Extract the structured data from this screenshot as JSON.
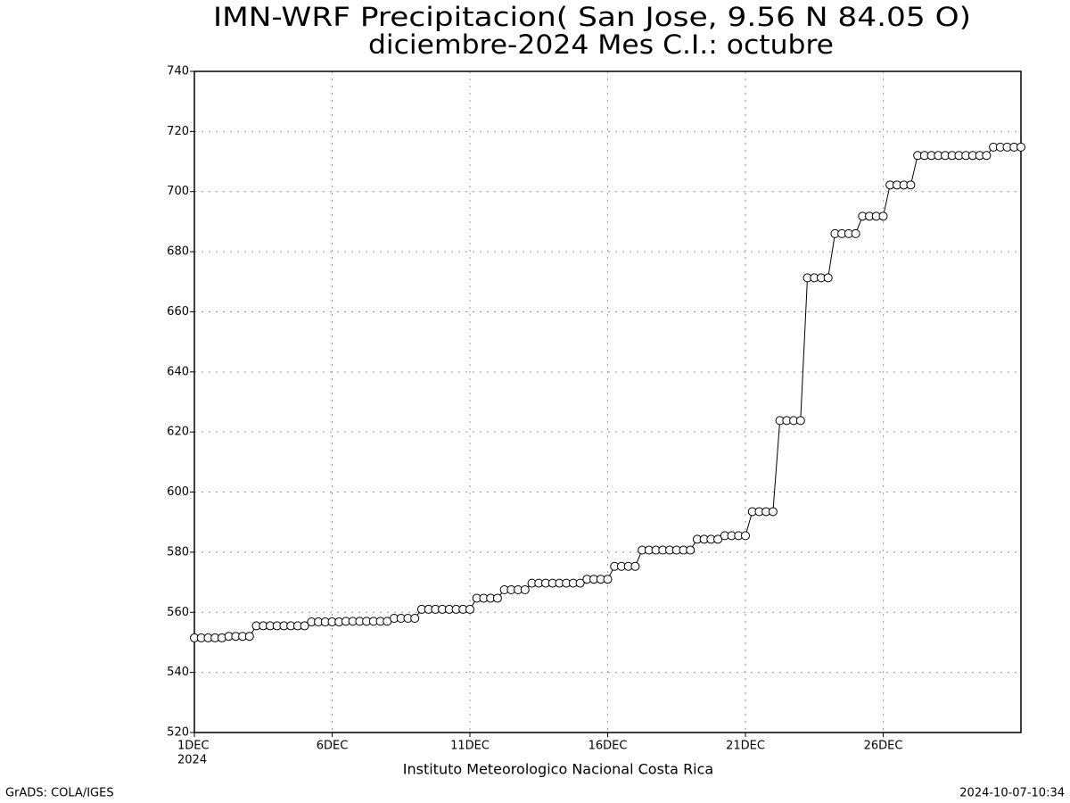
{
  "chart_data": {
    "type": "line",
    "title": "IMN-WRF  Precipitacion( San Jose, 9.56  N 84.05  O)",
    "subtitle": "diciembre-2024 Mes C.I.: octubre",
    "x_label": "Instituto Meteorologico Nacional Costa Rica",
    "x_year": "2024",
    "footer_left": "GrADS: COLA/IGES",
    "footer_right": "2024-10-07-10:34",
    "color": "#000000",
    "marker": "circle",
    "grid": true,
    "xlim": [
      1,
      31
    ],
    "xticks": [
      {
        "value": 1,
        "label": "1DEC"
      },
      {
        "value": 6,
        "label": "6DEC"
      },
      {
        "value": 11,
        "label": "11DEC"
      },
      {
        "value": 16,
        "label": "16DEC"
      },
      {
        "value": 21,
        "label": "21DEC"
      },
      {
        "value": 26,
        "label": "26DEC"
      }
    ],
    "ylim": [
      520,
      740
    ],
    "yticks": [
      520,
      540,
      560,
      580,
      600,
      620,
      640,
      660,
      680,
      700,
      720,
      740
    ],
    "x": [
      1,
      1.25,
      1.5,
      1.75,
      2,
      2.25,
      2.5,
      2.75,
      3,
      3.25,
      3.5,
      3.75,
      4,
      4.25,
      4.5,
      4.75,
      5,
      5.25,
      5.5,
      5.75,
      6,
      6.25,
      6.5,
      6.75,
      7,
      7.25,
      7.5,
      7.75,
      8,
      8.25,
      8.5,
      8.75,
      9,
      9.25,
      9.5,
      9.75,
      10,
      10.25,
      10.5,
      10.75,
      11,
      11.25,
      11.5,
      11.75,
      12,
      12.25,
      12.5,
      12.75,
      13,
      13.25,
      13.5,
      13.75,
      14,
      14.25,
      14.5,
      14.75,
      15,
      15.25,
      15.5,
      15.75,
      16,
      16.25,
      16.5,
      16.75,
      17,
      17.25,
      17.5,
      17.75,
      18,
      18.25,
      18.5,
      18.75,
      19,
      19.25,
      19.5,
      19.75,
      20,
      20.25,
      20.5,
      20.75,
      21,
      21.25,
      21.5,
      21.75,
      22,
      22.25,
      22.5,
      22.75,
      23,
      23.25,
      23.5,
      23.75,
      24,
      24.25,
      24.5,
      24.75,
      25,
      25.25,
      25.5,
      25.75,
      26,
      26.25,
      26.5,
      26.75,
      27,
      27.25,
      27.5,
      27.75,
      28,
      28.25,
      28.5,
      28.75,
      29,
      29.25,
      29.5,
      29.75,
      30,
      30.25,
      30.5,
      30.75,
      31
    ],
    "values": [
      551.5,
      551.5,
      551.5,
      551.5,
      551.5,
      552,
      552,
      552,
      552,
      555.5,
      555.5,
      555.5,
      555.5,
      555.5,
      555.5,
      555.5,
      555.5,
      556.8,
      556.8,
      556.8,
      556.8,
      556.8,
      557,
      557,
      557,
      557,
      557,
      557,
      557,
      558,
      558,
      558,
      558,
      561,
      561,
      561,
      561,
      561,
      561,
      561,
      561,
      564.7,
      564.7,
      564.7,
      564.7,
      567.5,
      567.5,
      567.5,
      567.5,
      569.7,
      569.7,
      569.7,
      569.7,
      569.7,
      569.7,
      569.7,
      569.7,
      571,
      571,
      571,
      571,
      575.3,
      575.3,
      575.3,
      575.3,
      580.7,
      580.7,
      580.7,
      580.7,
      580.7,
      580.7,
      580.7,
      580.7,
      584.3,
      584.3,
      584.3,
      584.3,
      585.5,
      585.5,
      585.5,
      585.5,
      593.5,
      593.5,
      593.5,
      593.5,
      623.8,
      623.8,
      623.8,
      623.8,
      671.3,
      671.3,
      671.3,
      671.3,
      686,
      686,
      686,
      686,
      691.8,
      691.8,
      691.8,
      691.8,
      702.2,
      702.2,
      702.2,
      702.2,
      712,
      712,
      712,
      712,
      712,
      712,
      712,
      712,
      712,
      712,
      712,
      714.8,
      714.8,
      714.8,
      714.8,
      714.8
    ]
  }
}
